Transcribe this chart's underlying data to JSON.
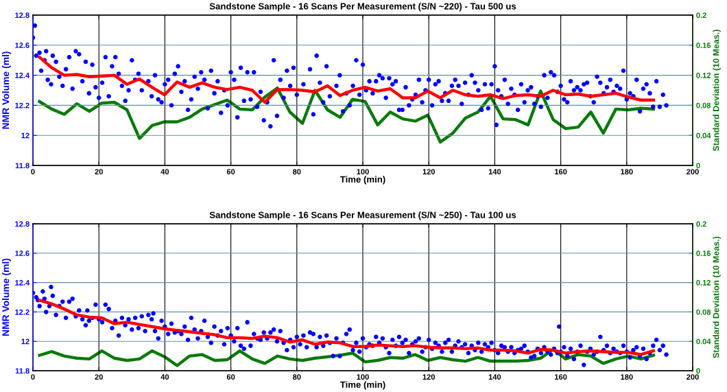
{
  "chart_data": [
    {
      "type": "scatter",
      "title": "Sandstone Sample - 16 Scans Per Measurement (S/N ~220) - Tau 500 us",
      "xlabel": "Time (min)",
      "ylabel": "NMR Volume (ml)",
      "y2label": "Standard Deviation (10 Meas.)",
      "xlim": [
        0,
        200
      ],
      "xticks": [
        0,
        20,
        40,
        60,
        80,
        100,
        120,
        140,
        160,
        180,
        200
      ],
      "ylim": [
        11.8,
        12.8
      ],
      "yticks": [
        11.8,
        12,
        12.2,
        12.4,
        12.6,
        12.8
      ],
      "y2lim": [
        0,
        0.2
      ],
      "y2ticks": [
        0,
        0.04,
        0.08,
        0.12,
        0.16,
        0.2
      ],
      "grid": true,
      "series": [
        {
          "marker": "circle",
          "color": "#0000ff",
          "x": [
            0,
            0.6,
            1,
            2,
            2.5,
            3.5,
            4,
            4.5,
            5.5,
            6,
            7,
            8,
            9,
            10,
            11,
            12,
            13,
            14,
            15,
            16,
            17,
            18,
            19,
            20,
            21,
            22,
            23,
            24,
            25,
            26,
            27,
            28,
            29,
            30,
            31,
            32,
            33,
            35,
            36,
            37,
            38,
            39,
            40,
            41,
            42,
            43,
            44,
            45,
            46,
            47,
            48,
            49,
            50,
            51,
            52,
            53,
            54,
            55,
            56,
            57,
            58,
            59,
            60,
            61,
            62,
            63,
            64,
            65,
            66,
            67,
            68,
            69,
            70,
            71,
            72,
            73,
            74,
            75,
            76,
            77,
            78,
            79,
            80,
            82,
            84,
            85,
            86,
            87,
            88,
            89,
            90,
            92,
            93,
            94,
            95,
            96,
            97,
            98,
            99,
            100,
            101,
            102,
            103,
            104,
            105,
            106,
            107,
            108,
            109,
            110,
            111,
            112,
            113,
            114,
            115,
            116,
            117,
            118,
            119,
            120,
            121,
            122,
            123,
            124,
            125,
            126,
            127,
            128,
            129,
            130,
            131,
            132,
            133,
            134,
            135,
            136,
            137,
            138,
            139,
            140,
            140.5,
            141,
            142,
            143,
            144,
            145,
            146,
            147,
            148,
            149,
            150,
            151,
            152,
            153,
            154,
            155,
            156,
            157,
            158,
            159,
            160,
            161,
            162,
            163,
            164,
            165,
            166,
            167,
            168,
            169,
            170,
            171,
            172,
            173,
            174,
            175,
            176,
            177,
            178,
            179,
            180,
            181,
            182,
            183,
            184,
            185,
            186,
            187,
            188,
            189,
            190,
            191,
            192
          ],
          "values": [
            12.65,
            12.73,
            12.53,
            12.55,
            12.43,
            12.5,
            12.56,
            12.37,
            12.34,
            12.53,
            12.49,
            12.39,
            12.33,
            12.44,
            12.52,
            12.31,
            12.56,
            12.54,
            12.36,
            12.49,
            12.28,
            12.47,
            12.32,
            12.25,
            12.35,
            12.52,
            12.26,
            12.46,
            12.52,
            12.41,
            12.33,
            12.23,
            12.3,
            12.5,
            12.37,
            12.41,
            12.3,
            12.36,
            12.26,
            12.4,
            12.24,
            12.22,
            12.34,
            12.37,
            12.2,
            12.41,
            12.46,
            12.29,
            12.36,
            12.17,
            12.24,
            12.39,
            12.31,
            12.42,
            12.37,
            12.18,
            12.43,
            12.28,
            12.36,
            12.15,
            12.3,
            12.2,
            12.42,
            12.37,
            12.12,
            12.45,
            12.23,
            12.42,
            12.24,
            12.42,
            12.19,
            12.29,
            12.1,
            12.22,
            12.06,
            12.5,
            12.13,
            12.37,
            12.25,
            12.43,
            12.33,
            12.45,
            12.27,
            12.34,
            12.44,
            12.14,
            12.53,
            12.35,
            12.22,
            12.46,
            12.26,
            12.33,
            12.4,
            12.16,
            12.28,
            12.2,
            12.33,
            12.5,
            12.27,
            12.47,
            12.3,
            12.36,
            12.28,
            12.36,
            12.4,
            12.38,
            12.25,
            12.38,
            12.34,
            12.36,
            12.17,
            12.17,
            12.32,
            12.2,
            12.24,
            12.27,
            12.37,
            12.22,
            12.3,
            12.37,
            12.2,
            12.34,
            12.36,
            12.23,
            12.28,
            12.23,
            12.33,
            12.37,
            12.33,
            12.21,
            12.35,
            12.27,
            12.4,
            12.35,
            12.3,
            12.17,
            12.34,
            12.18,
            12.34,
            12.46,
            12.07,
            12.3,
            12.26,
            12.37,
            12.21,
            12.31,
            12.27,
            12.17,
            12.34,
            12.22,
            12.3,
            12.32,
            12.21,
            12.26,
            12.19,
            12.4,
            12.25,
            12.42,
            12.4,
            12.29,
            12.33,
            12.24,
            12.22,
            12.36,
            12.3,
            12.32,
            12.3,
            12.34,
            12.35,
            12.26,
            12.22,
            12.39,
            12.35,
            12.28,
            12.32,
            12.37,
            12.29,
            12.33,
            12.31,
            12.43,
            12.24,
            12.28,
            12.26,
            12.37,
            12.16,
            12.31,
            12.34,
            12.28,
            12.19,
            12.36,
            12.19,
            12.27,
            12.2
          ]
        },
        {
          "type": "line",
          "color": "#ff0000",
          "x": [
            2,
            5.7,
            9.5,
            13.3,
            17.1,
            20.9,
            24.7,
            28.5,
            32.3,
            36.1,
            39.9,
            43.7,
            47.5,
            51.3,
            55.1,
            58.9,
            62.7,
            66.5,
            70.3,
            74.1,
            77.9,
            81.7,
            85.5,
            89.3,
            93.1,
            96.9,
            100.7,
            104.5,
            108.3,
            112.1,
            115.9,
            119.7,
            123.5,
            127.3,
            131.1,
            134.9,
            138.7,
            142.5,
            146.3,
            150.1,
            153.9,
            157.7,
            161.5,
            165.3,
            169.1,
            172.9,
            176.7,
            180.5,
            184.3,
            188.1
          ],
          "values": [
            12.52,
            12.45,
            12.4,
            12.405,
            12.39,
            12.395,
            12.4,
            12.34,
            12.375,
            12.32,
            12.27,
            12.355,
            12.32,
            12.35,
            12.32,
            12.305,
            12.32,
            12.3,
            12.22,
            12.305,
            12.305,
            12.3,
            12.29,
            12.33,
            12.265,
            12.3,
            12.32,
            12.295,
            12.31,
            12.25,
            12.25,
            12.295,
            12.25,
            12.3,
            12.27,
            12.26,
            12.27,
            12.245,
            12.265,
            12.27,
            12.26,
            12.3,
            12.27,
            12.275,
            12.26,
            12.27,
            12.28,
            12.255,
            12.235,
            12.235
          ]
        },
        {
          "type": "line",
          "axis": "y2",
          "color": "#0a7a0a",
          "x": [
            2,
            5.7,
            9.5,
            13.3,
            17.1,
            20.9,
            24.7,
            28.5,
            32.3,
            36.1,
            39.9,
            43.7,
            47.5,
            51.3,
            55.1,
            58.9,
            62.7,
            66.5,
            70.3,
            74.1,
            77.9,
            81.7,
            85.5,
            89.3,
            93.1,
            96.9,
            100.7,
            104.5,
            108.3,
            112.1,
            115.9,
            119.7,
            123.5,
            127.3,
            131.1,
            134.9,
            138.7,
            142.5,
            146.3,
            150.1,
            153.9,
            157.7,
            161.5,
            165.3,
            169.1,
            172.9,
            176.7,
            180.5,
            184.3,
            188.1
          ],
          "values": [
            0.085,
            0.075,
            0.068,
            0.082,
            0.072,
            0.083,
            0.084,
            0.074,
            0.036,
            0.053,
            0.058,
            0.058,
            0.064,
            0.075,
            0.081,
            0.087,
            0.075,
            0.074,
            0.091,
            0.103,
            0.071,
            0.056,
            0.1,
            0.074,
            0.064,
            0.088,
            0.085,
            0.054,
            0.071,
            0.062,
            0.059,
            0.067,
            0.031,
            0.043,
            0.063,
            0.071,
            0.092,
            0.062,
            0.061,
            0.054,
            0.099,
            0.061,
            0.049,
            0.051,
            0.071,
            0.043,
            0.075,
            0.074,
            0.076,
            0.075
          ]
        }
      ]
    },
    {
      "type": "scatter",
      "title": "Sandstone Sample - 16 Scans Per Measurement (S/N ~250) - Tau 100 us",
      "xlabel": "Time (min)",
      "ylabel": "NMR Volume (ml)",
      "y2label": "Standard Deviation (10 Meas.)",
      "xlim": [
        0,
        200
      ],
      "xticks": [
        0,
        20,
        40,
        60,
        80,
        100,
        120,
        140,
        160,
        180,
        200
      ],
      "ylim": [
        11.8,
        12.8
      ],
      "yticks": [
        11.8,
        12,
        12.2,
        12.4,
        12.6,
        12.8
      ],
      "y2lim": [
        0,
        0.2
      ],
      "y2ticks": [
        0,
        0.04,
        0.08,
        0.12,
        0.16,
        0.2
      ],
      "grid": true,
      "series": [
        {
          "marker": "circle",
          "color": "#0000ff",
          "x": [
            0,
            1,
            1.5,
            2,
            3,
            3.5,
            4,
            5,
            5.5,
            6,
            7,
            8,
            9,
            10,
            11,
            12,
            13,
            14,
            15,
            16,
            16.5,
            17,
            18,
            19,
            20,
            21,
            22,
            23,
            24,
            25,
            26,
            27,
            28,
            29,
            30,
            31,
            32,
            33,
            34,
            35,
            36,
            36.5,
            37,
            38,
            39,
            40,
            41,
            42,
            43,
            44,
            45,
            46,
            47,
            48,
            49,
            50,
            51,
            52,
            53,
            54,
            55,
            56,
            57,
            58,
            59,
            60,
            61,
            62,
            63,
            64,
            65,
            66,
            67,
            68,
            69,
            70,
            71,
            72,
            73,
            74,
            75,
            76,
            77,
            78,
            79,
            80,
            81,
            82,
            83,
            84,
            85,
            86,
            87,
            88,
            89,
            90,
            91,
            92,
            93,
            94,
            95,
            96,
            97,
            98,
            99,
            100,
            101,
            102,
            103,
            104,
            105,
            106,
            107,
            108,
            109,
            110,
            111,
            112,
            113,
            114,
            115,
            116,
            117,
            118,
            119,
            120,
            121,
            122,
            123,
            124,
            125,
            126,
            127,
            128,
            129,
            130,
            131,
            132,
            133,
            134,
            135,
            136,
            137,
            138,
            139,
            140,
            141,
            142,
            143,
            144,
            145,
            146,
            147,
            148,
            149,
            150,
            151,
            152,
            153,
            154,
            155,
            156,
            157,
            158,
            159,
            159.5,
            160,
            161,
            162,
            163,
            164,
            165,
            166,
            167,
            168,
            169,
            170,
            171,
            172,
            173,
            174,
            175,
            176,
            177,
            178,
            179,
            180,
            181,
            182,
            183,
            184,
            185,
            186,
            187,
            188,
            189,
            190,
            191,
            192
          ],
          "values": [
            12.33,
            12.3,
            12.28,
            12.24,
            12.34,
            12.29,
            12.2,
            12.24,
            12.37,
            12.31,
            12.18,
            12.24,
            12.27,
            12.16,
            12.27,
            12.29,
            12.17,
            12.21,
            12.15,
            12.11,
            12.21,
            12.14,
            12.16,
            12.25,
            12.15,
            12.13,
            12.25,
            12.22,
            12.09,
            12.14,
            12.04,
            12.16,
            12.11,
            12.15,
            12.08,
            12.16,
            12.09,
            12.17,
            12.07,
            12.18,
            12.15,
            12.19,
            12.07,
            12.02,
            12.14,
            12.1,
            12.05,
            12.12,
            12.06,
            12.07,
            12.05,
            12.1,
            12.01,
            12.16,
            12.08,
            12.02,
            12.07,
            12.14,
            12.03,
            11.99,
            12.1,
            12.04,
            12.07,
            11.98,
            12.09,
            12.04,
            12,
            12.09,
            11.97,
            11.95,
            12.13,
            11.97,
            12.05,
            12.02,
            12.01,
            12.06,
            12.02,
            12.06,
            12.08,
            12,
            12.07,
            11.99,
            11.94,
            12.01,
            11.96,
            12.03,
            11.98,
            12.04,
            11.96,
            12.06,
            12.05,
            11.96,
            12.03,
            11.97,
            12.04,
            11.99,
            11.9,
            12.02,
            11.9,
            11.99,
            12.05,
            12.08,
            11.94,
            11.99,
            11.93,
            12.02,
            11.96,
            11.98,
            11.97,
            12.03,
            11.99,
            12.02,
            11.96,
            11.92,
            12.01,
            11.97,
            12.03,
            11.99,
            12.01,
            11.92,
            11.98,
            12,
            12.02,
            11.93,
            11.96,
            12.01,
            11.95,
            11.99,
            11.97,
            11.93,
            11.99,
            12.01,
            11.93,
            11.97,
            12,
            11.96,
            11.98,
            11.92,
            11.97,
            11.94,
            11.99,
            11.93,
            11.98,
            11.96,
            11.99,
            11.94,
            11.92,
            11.97,
            11.96,
            11.93,
            11.96,
            11.92,
            11.94,
            11.95,
            11.97,
            11.93,
            11.89,
            11.9,
            11.95,
            11.92,
            11.96,
            11.93,
            11.91,
            11.95,
            11.92,
            12.1,
            11.93,
            11.96,
            11.9,
            11.95,
            11.88,
            11.93,
            11.97,
            11.84,
            11.93,
            11.95,
            11.91,
            11.93,
            12.03,
            11.94,
            11.97,
            11.92,
            11.95,
            11.93,
            11.92,
            11.97,
            11.93,
            11.89,
            11.94,
            11.96,
            11.9,
            11.95,
            11.88,
            11.92,
            11.97,
            12.01,
            11.94,
            11.97,
            11.91
          ]
        },
        {
          "type": "line",
          "color": "#ff0000",
          "x": [
            2,
            5.7,
            9.5,
            13.3,
            17.1,
            20.9,
            24.7,
            28.5,
            32.3,
            36.1,
            39.9,
            43.7,
            47.5,
            51.3,
            55.1,
            58.9,
            62.7,
            66.5,
            70.3,
            74.1,
            77.9,
            81.7,
            85.5,
            89.3,
            93.1,
            96.9,
            100.7,
            104.5,
            108.3,
            112.1,
            115.9,
            119.7,
            123.5,
            127.3,
            131.1,
            134.9,
            138.7,
            142.5,
            146.3,
            150.1,
            153.9,
            157.7,
            161.5,
            165.3,
            169.1,
            172.9,
            176.7,
            180.5,
            184.3,
            188.1
          ],
          "values": [
            12.28,
            12.255,
            12.22,
            12.18,
            12.165,
            12.16,
            12.12,
            12.13,
            12.115,
            12.1,
            12.085,
            12.075,
            12.065,
            12.055,
            12.045,
            12.025,
            12.025,
            12.02,
            12.035,
            12.025,
            11.995,
            12.01,
            11.98,
            11.995,
            11.99,
            11.965,
            11.965,
            11.975,
            11.97,
            11.965,
            11.97,
            11.96,
            11.955,
            11.955,
            11.95,
            11.955,
            11.94,
            11.94,
            11.935,
            11.92,
            11.945,
            11.94,
            11.92,
            11.93,
            11.935,
            11.93,
            11.925,
            11.925,
            11.91,
            11.935
          ]
        },
        {
          "type": "line",
          "axis": "y2",
          "color": "#0a7a0a",
          "x": [
            2,
            5.7,
            9.5,
            13.3,
            17.1,
            20.9,
            24.7,
            28.5,
            32.3,
            36.1,
            39.9,
            43.7,
            47.5,
            51.3,
            55.1,
            58.9,
            62.7,
            66.5,
            70.3,
            74.1,
            77.9,
            81.7,
            85.5,
            89.3,
            93.1,
            96.9,
            100.7,
            104.5,
            108.3,
            112.1,
            115.9,
            119.7,
            123.5,
            127.3,
            131.1,
            134.9,
            138.7,
            142.5,
            146.3,
            150.1,
            153.9,
            157.7,
            161.5,
            165.3,
            169.1,
            172.9,
            176.7,
            180.5,
            184.3,
            188.1
          ],
          "values": [
            0.021,
            0.026,
            0.02,
            0.017,
            0.016,
            0.027,
            0.017,
            0.014,
            0.016,
            0.027,
            0.019,
            0.007,
            0.02,
            0.022,
            0.014,
            0.015,
            0.027,
            0.016,
            0.01,
            0.02,
            0.016,
            0.014,
            0.017,
            0.019,
            0.021,
            0.024,
            0.012,
            0.014,
            0.018,
            0.017,
            0.022,
            0.014,
            0.018,
            0.015,
            0.013,
            0.018,
            0.013,
            0.013,
            0.013,
            0.014,
            0.017,
            0.029,
            0.016,
            0.022,
            0.02,
            0.01,
            0.016,
            0.02,
            0.016,
            0.021
          ]
        }
      ]
    }
  ]
}
